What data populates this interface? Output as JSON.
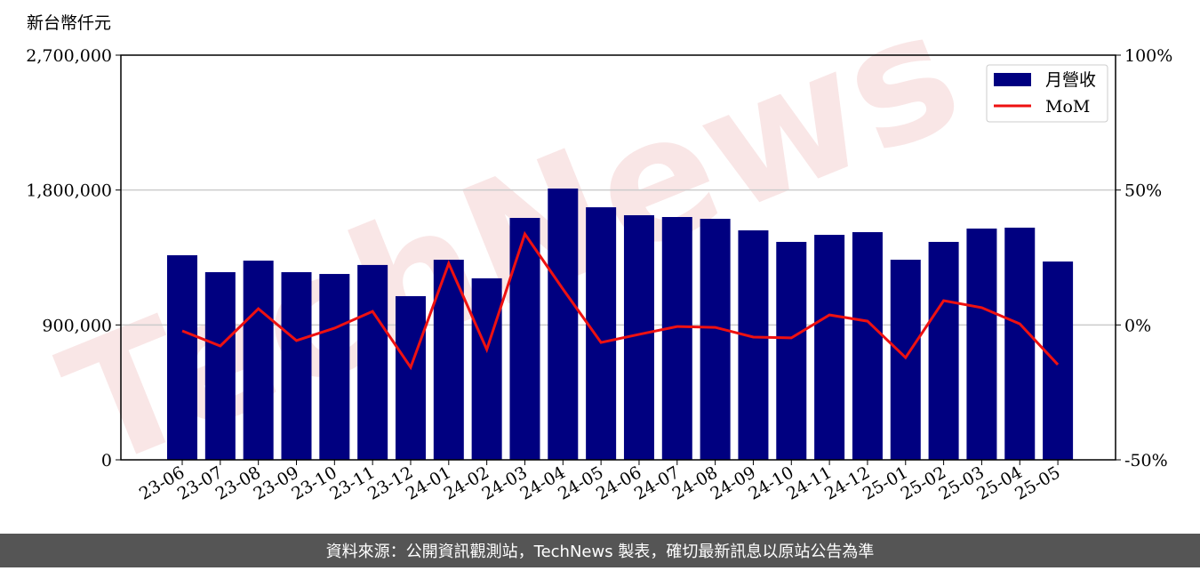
{
  "chart_data": {
    "type": "bar_line",
    "y_axis_title": "新台幣仟元",
    "watermark": "TechNews",
    "categories": [
      "23-06",
      "23-07",
      "23-08",
      "23-09",
      "23-10",
      "23-11",
      "23-12",
      "24-01",
      "24-02",
      "24-03",
      "24-04",
      "24-05",
      "24-06",
      "24-07",
      "24-08",
      "24-09",
      "24-10",
      "24-11",
      "24-12",
      "25-01",
      "25-02",
      "25-03",
      "25-04",
      "25-05"
    ],
    "series": [
      {
        "name": "月營收",
        "color": "#000080",
        "type": "bar",
        "values": [
          1365000,
          1252000,
          1329000,
          1252000,
          1240000,
          1300000,
          1092000,
          1335000,
          1211000,
          1614000,
          1810000,
          1685000,
          1632000,
          1620000,
          1608000,
          1531000,
          1454000,
          1501000,
          1519000,
          1335000,
          1454000,
          1543000,
          1549000,
          1323000
        ]
      },
      {
        "name": "MoM",
        "color": "#ee1111",
        "type": "line",
        "axis": "y2",
        "values": [
          -2.2,
          -7.8,
          6.0,
          -5.8,
          -1.2,
          5.0,
          -15.7,
          22.8,
          -9.1,
          33.7,
          13.3,
          -6.5,
          -3.5,
          -0.6,
          -0.9,
          -4.5,
          -4.8,
          3.7,
          1.4,
          -12.1,
          9.0,
          6.4,
          0.4,
          -14.7
        ]
      }
    ],
    "ylim": [
      0,
      2700000
    ],
    "yticks": [
      {
        "value": 0,
        "label": "0"
      },
      {
        "value": 900000,
        "label": "900,000"
      },
      {
        "value": 1800000,
        "label": "1,800,000"
      },
      {
        "value": 2700000,
        "label": "2,700,000"
      }
    ],
    "y2lim": [
      -50,
      100
    ],
    "y2ticks": [
      {
        "value": -50,
        "label": "-50%"
      },
      {
        "value": 0,
        "label": "0%"
      },
      {
        "value": 50,
        "label": "50%"
      },
      {
        "value": 100,
        "label": "100%"
      }
    ],
    "grid": true,
    "legend": "upper right",
    "footer": "資料來源：公開資訊觀測站，TechNews 製表，確切最新訊息以原站公告為準"
  }
}
